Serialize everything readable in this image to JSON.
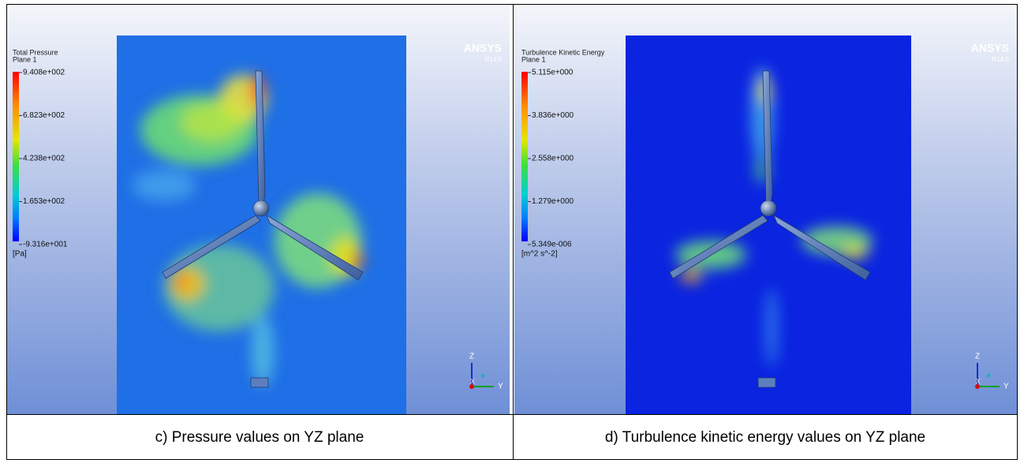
{
  "panels": [
    {
      "legend_title": "Total Pressure",
      "legend_subtitle": "Plane 1",
      "legend_ticks": [
        "9.408e+002",
        "6.823e+002",
        "4.238e+002",
        "1.653e+002",
        "-9.316e+001"
      ],
      "unit": "[Pa]",
      "logo": "ANSYS",
      "version": "R14.5",
      "axes": {
        "z": "Z",
        "x": "X",
        "y": "Y"
      },
      "caption": "c) Pressure values on YZ plane"
    },
    {
      "legend_title": "Turbulence Kinetic Energy",
      "legend_subtitle": "Plane 1",
      "legend_ticks": [
        "5.115e+000",
        "3.836e+000",
        "2.558e+000",
        "1.279e+000",
        "5.349e-006"
      ],
      "unit": "[m^2 s^-2]",
      "logo": "ANSYS",
      "version": "R14.5",
      "axes": {
        "z": "Z",
        "x": "X",
        "y": "Y"
      },
      "caption": "d) Turbulence kinetic energy values on YZ plane"
    }
  ]
}
